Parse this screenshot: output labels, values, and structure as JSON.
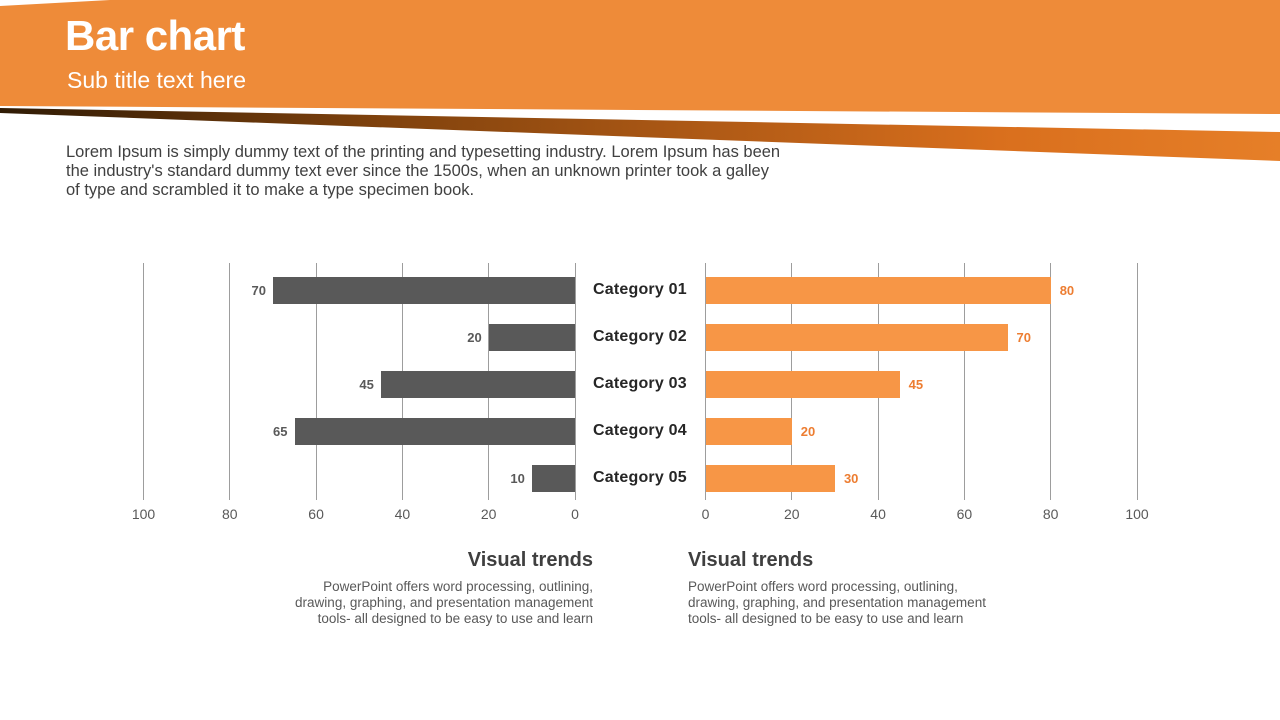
{
  "header": {
    "title": "Bar chart",
    "subtitle": "Sub title text here"
  },
  "intro": "Lorem Ipsum is simply dummy text of the printing and typesetting industry. Lorem Ipsum has been the industry's standard dummy text ever since the 1500s, when an unknown printer took a galley of type and scrambled it to make a type specimen book.",
  "chart_data": {
    "type": "bar",
    "orientation": "horizontal-tornado",
    "title": "",
    "categories": [
      "Category 01",
      "Category 02",
      "Category 03",
      "Category 04",
      "Category 05"
    ],
    "series": [
      {
        "name": "left-gray-series",
        "side": "left",
        "color": "#595959",
        "values": [
          70,
          20,
          45,
          65,
          10
        ]
      },
      {
        "name": "right-orange-series",
        "side": "right",
        "color": "#F79646",
        "values": [
          80,
          70,
          45,
          20,
          30
        ]
      }
    ],
    "x_axis": {
      "left_ticks": [
        100,
        80,
        60,
        40,
        20,
        0
      ],
      "right_ticks": [
        0,
        20,
        40,
        60,
        80,
        100
      ],
      "range": [
        0,
        100
      ],
      "grid": true
    },
    "legend": "none",
    "value_labels": "outside-end"
  },
  "footers": [
    {
      "heading": "Visual trends",
      "body": "PowerPoint offers word processing, outlining, drawing, graphing, and presentation management tools- all designed to be easy to use and learn"
    },
    {
      "heading": "Visual trends",
      "body": "PowerPoint offers word processing, outlining, drawing, graphing, and presentation management tools- all designed to be easy to use and learn"
    }
  ],
  "colors": {
    "header_bg": "#EE8B39",
    "stripe_dark": "#2F1B05",
    "stripe_mid": "#80420D",
    "stripe_light": "#D96F1D",
    "stripe_end": "#E67F28",
    "bar_left": "#595959",
    "bar_right": "#F79646",
    "value_label_left": "#595959",
    "value_label_right": "#ED7D31",
    "category_label": "#262626",
    "axis_label": "#595959",
    "gridline": "#9D9D9D",
    "text_dark": "#404040",
    "footer_heading": "#3F3F3F",
    "footer_body": "#595959"
  }
}
